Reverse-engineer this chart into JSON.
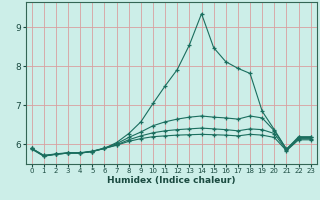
{
  "xlabel": "Humidex (Indice chaleur)",
  "bg_color": "#cceee8",
  "grid_color": "#d8a0a0",
  "line_color": "#1a6e5e",
  "xlim": [
    -0.5,
    23.5
  ],
  "ylim": [
    5.5,
    9.65
  ],
  "xticks": [
    0,
    1,
    2,
    3,
    4,
    5,
    6,
    7,
    8,
    9,
    10,
    11,
    12,
    13,
    14,
    15,
    16,
    17,
    18,
    19,
    20,
    21,
    22,
    23
  ],
  "yticks": [
    6,
    7,
    8,
    9
  ],
  "lines": [
    {
      "x": [
        0,
        1,
        2,
        3,
        4,
        5,
        6,
        7,
        8,
        9,
        10,
        11,
        12,
        13,
        14,
        15,
        16,
        17,
        18,
        19,
        20,
        21,
        22,
        23
      ],
      "y": [
        5.88,
        5.7,
        5.75,
        5.78,
        5.78,
        5.82,
        5.9,
        6.05,
        6.28,
        6.58,
        7.05,
        7.5,
        7.92,
        8.55,
        9.35,
        8.48,
        8.12,
        7.95,
        7.82,
        6.85,
        6.38,
        5.88,
        6.2,
        6.2
      ]
    },
    {
      "x": [
        0,
        1,
        2,
        3,
        4,
        5,
        6,
        7,
        8,
        9,
        10,
        11,
        12,
        13,
        14,
        15,
        16,
        17,
        18,
        19,
        20,
        21,
        22,
        23
      ],
      "y": [
        5.9,
        5.72,
        5.76,
        5.79,
        5.79,
        5.83,
        5.91,
        6.02,
        6.18,
        6.32,
        6.48,
        6.58,
        6.65,
        6.7,
        6.73,
        6.7,
        6.68,
        6.65,
        6.73,
        6.68,
        6.35,
        5.88,
        6.18,
        6.18
      ]
    },
    {
      "x": [
        0,
        1,
        2,
        3,
        4,
        5,
        6,
        7,
        8,
        9,
        10,
        11,
        12,
        13,
        14,
        15,
        16,
        17,
        18,
        19,
        20,
        21,
        22,
        23
      ],
      "y": [
        5.9,
        5.7,
        5.75,
        5.78,
        5.78,
        5.82,
        5.9,
        5.99,
        6.12,
        6.22,
        6.3,
        6.35,
        6.38,
        6.4,
        6.42,
        6.4,
        6.38,
        6.35,
        6.4,
        6.38,
        6.28,
        5.85,
        6.15,
        6.15
      ]
    },
    {
      "x": [
        0,
        1,
        2,
        3,
        4,
        5,
        6,
        7,
        8,
        9,
        10,
        11,
        12,
        13,
        14,
        15,
        16,
        17,
        18,
        19,
        20,
        21,
        22,
        23
      ],
      "y": [
        5.9,
        5.72,
        5.75,
        5.78,
        5.78,
        5.82,
        5.9,
        5.98,
        6.08,
        6.15,
        6.2,
        6.22,
        6.24,
        6.25,
        6.26,
        6.25,
        6.24,
        6.22,
        6.26,
        6.24,
        6.18,
        5.84,
        6.12,
        6.12
      ]
    }
  ]
}
